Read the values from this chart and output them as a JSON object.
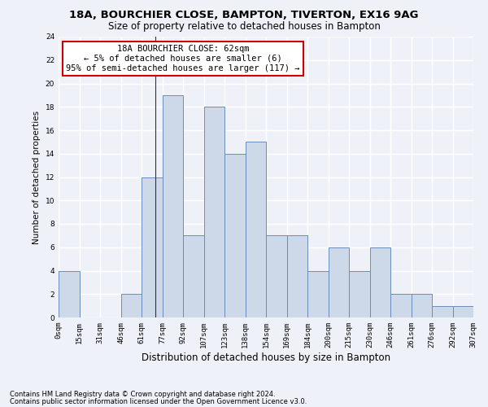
{
  "title1": "18A, BOURCHIER CLOSE, BAMPTON, TIVERTON, EX16 9AG",
  "title2": "Size of property relative to detached houses in Bampton",
  "xlabel": "Distribution of detached houses by size in Bampton",
  "ylabel": "Number of detached properties",
  "bin_labels": [
    "0sqm",
    "15sqm",
    "31sqm",
    "46sqm",
    "61sqm",
    "77sqm",
    "92sqm",
    "107sqm",
    "123sqm",
    "138sqm",
    "154sqm",
    "169sqm",
    "184sqm",
    "200sqm",
    "215sqm",
    "230sqm",
    "246sqm",
    "261sqm",
    "276sqm",
    "292sqm",
    "307sqm"
  ],
  "bar_heights": [
    4,
    0,
    0,
    2,
    12,
    19,
    7,
    18,
    14,
    15,
    7,
    7,
    4,
    6,
    4,
    6,
    2,
    2,
    1,
    1
  ],
  "bar_color": "#cdd8e8",
  "bar_edge_color": "#6b8cba",
  "annotation_text": "18A BOURCHIER CLOSE: 62sqm\n← 5% of detached houses are smaller (6)\n95% of semi-detached houses are larger (117) →",
  "annotation_box_color": "#ffffff",
  "annotation_box_edge_color": "#cc0000",
  "vline_x": 4.67,
  "ylim": [
    0,
    24
  ],
  "yticks": [
    0,
    2,
    4,
    6,
    8,
    10,
    12,
    14,
    16,
    18,
    20,
    22,
    24
  ],
  "footnote1": "Contains HM Land Registry data © Crown copyright and database right 2024.",
  "footnote2": "Contains public sector information licensed under the Open Government Licence v3.0.",
  "background_color": "#eef2f8",
  "grid_color": "#ffffff",
  "title1_fontsize": 9.5,
  "title2_fontsize": 8.5,
  "xlabel_fontsize": 8.5,
  "ylabel_fontsize": 7.5,
  "tick_fontsize": 6.5,
  "annotation_fontsize": 7.5,
  "footnote_fontsize": 6.0
}
